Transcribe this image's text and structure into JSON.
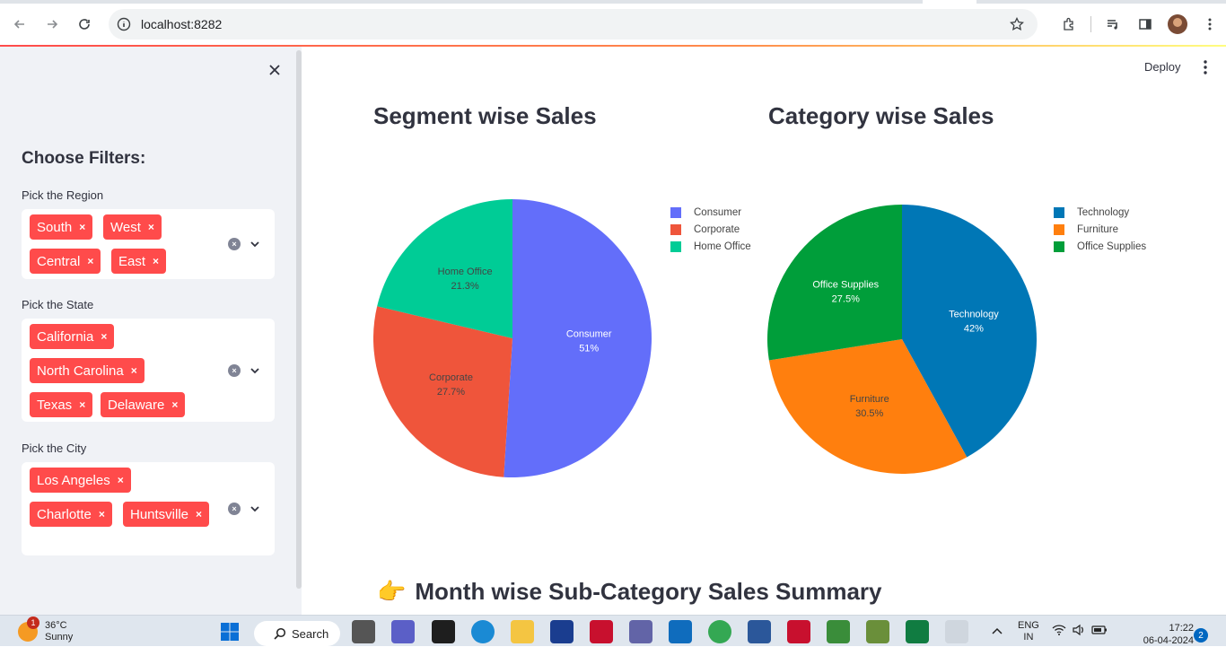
{
  "browser": {
    "url": "localhost:8282"
  },
  "app": {
    "deploy_label": "Deploy"
  },
  "sidebar": {
    "title": "Choose Filters:",
    "filters": [
      {
        "label": "Pick the Region",
        "selected": [
          "South",
          "West",
          "Central",
          "East"
        ]
      },
      {
        "label": "Pick the State",
        "selected": [
          "California",
          "North Carolina",
          "Texas",
          "Delaware"
        ]
      },
      {
        "label": "Pick the City",
        "selected": [
          "Los Angeles",
          "Charlotte",
          "Huntsville"
        ]
      }
    ],
    "remove_glyph": "×"
  },
  "charts": {
    "segment_title": "Segment wise Sales",
    "category_title": "Category wise Sales"
  },
  "chart_data": [
    {
      "type": "pie",
      "title": "Segment wise Sales",
      "labels": [
        "Consumer",
        "Corporate",
        "Home Office"
      ],
      "values": [
        51,
        27.7,
        21.3
      ],
      "value_labels": [
        "51%",
        "27.7%",
        "21.3%"
      ],
      "colors": [
        "#636efa",
        "#ef553b",
        "#00cc96"
      ],
      "legend": "right"
    },
    {
      "type": "pie",
      "title": "Category wise Sales",
      "labels": [
        "Technology",
        "Furniture",
        "Office Supplies"
      ],
      "values": [
        42,
        30.5,
        27.5
      ],
      "value_labels": [
        "42%",
        "30.5%",
        "27.5%"
      ],
      "colors": [
        "#0077b6",
        "#ff7f0e",
        "#009e3a"
      ],
      "legend": "right"
    }
  ],
  "section": {
    "emoji": "👉",
    "title": "Month wise Sub-Category Sales Summary"
  },
  "taskbar": {
    "weather_temp": "36°C",
    "weather_desc": "Sunny",
    "weather_badge": "1",
    "search_label": "Search",
    "lang_top": "ENG",
    "lang_bottom": "IN",
    "time": "17:22",
    "date": "06-04-2024",
    "notifications": "2"
  }
}
